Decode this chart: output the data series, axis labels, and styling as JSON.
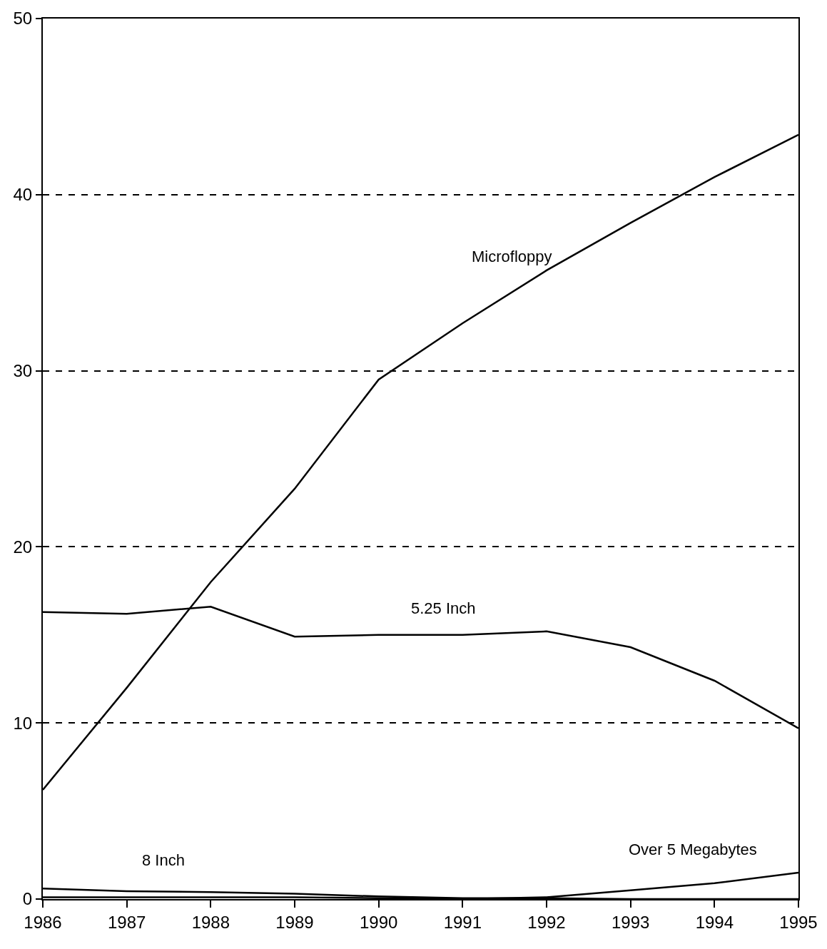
{
  "chart_data": {
    "type": "line",
    "x": [
      1986,
      1987,
      1988,
      1989,
      1990,
      1991,
      1992,
      1993,
      1994,
      1995
    ],
    "series": [
      {
        "name": "Microfloppy",
        "color": "#000000",
        "values": [
          6.2,
          12.0,
          18.0,
          23.3,
          29.5,
          32.7,
          35.7,
          38.4,
          41.0,
          43.4
        ]
      },
      {
        "name": "5.25 Inch",
        "color": "#000000",
        "values": [
          16.3,
          16.2,
          16.6,
          14.9,
          15.0,
          15.0,
          15.2,
          14.3,
          12.4,
          9.7
        ]
      },
      {
        "name": "8 Inch",
        "color": "#000000",
        "values": [
          0.6,
          0.45,
          0.4,
          0.3,
          0.15,
          0.05,
          0.05,
          0,
          0,
          0
        ]
      },
      {
        "name": "Over 5 Megabytes",
        "color": "#000000",
        "values": [
          0.1,
          0.1,
          0.1,
          0.1,
          0.05,
          0,
          0.1,
          0.5,
          0.9,
          1.5
        ]
      }
    ],
    "xlim": [
      1986,
      1995
    ],
    "xticks": [
      1986,
      1987,
      1988,
      1989,
      1990,
      1991,
      1992,
      1993,
      1994,
      1995
    ],
    "ylim": [
      0,
      50
    ],
    "yticks": [
      0,
      10,
      20,
      30,
      40,
      50
    ],
    "grid": "y",
    "legend": false,
    "marker": "none",
    "line_style": "solid"
  }
}
